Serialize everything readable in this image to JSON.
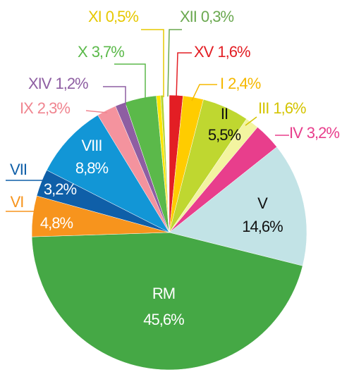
{
  "chart_data": {
    "type": "pie",
    "categories": [
      "XV",
      "I",
      "II",
      "III",
      "IV",
      "V",
      "RM",
      "VI",
      "VII",
      "VIII",
      "IX",
      "XIV",
      "X",
      "XI",
      "XII"
    ],
    "values": [
      1.6,
      2.4,
      5.5,
      1.6,
      3.2,
      14.6,
      45.6,
      4.8,
      3.2,
      8.8,
      2.3,
      1.2,
      3.7,
      0.5,
      0.3
    ],
    "value_labels": [
      "1,6%",
      "2,4%",
      "5,5%",
      "1,6%",
      "3,2%",
      "14,6%",
      "45,6%",
      "4,8%",
      "3,2%",
      "8,8%",
      "2,3%",
      "1,2%",
      "3,7%",
      "0,5%",
      "0,3%"
    ],
    "colors": [
      "#e31e24",
      "#ffcc00",
      "#bfd730",
      "#f3f4a0",
      "#e83e8c",
      "#c2e3e6",
      "#45a845",
      "#f7941d",
      "#0f5fa8",
      "#1296d6",
      "#f4939e",
      "#8e5ea2",
      "#5bb94a",
      "#ffe600",
      "#b5d334"
    ]
  }
}
